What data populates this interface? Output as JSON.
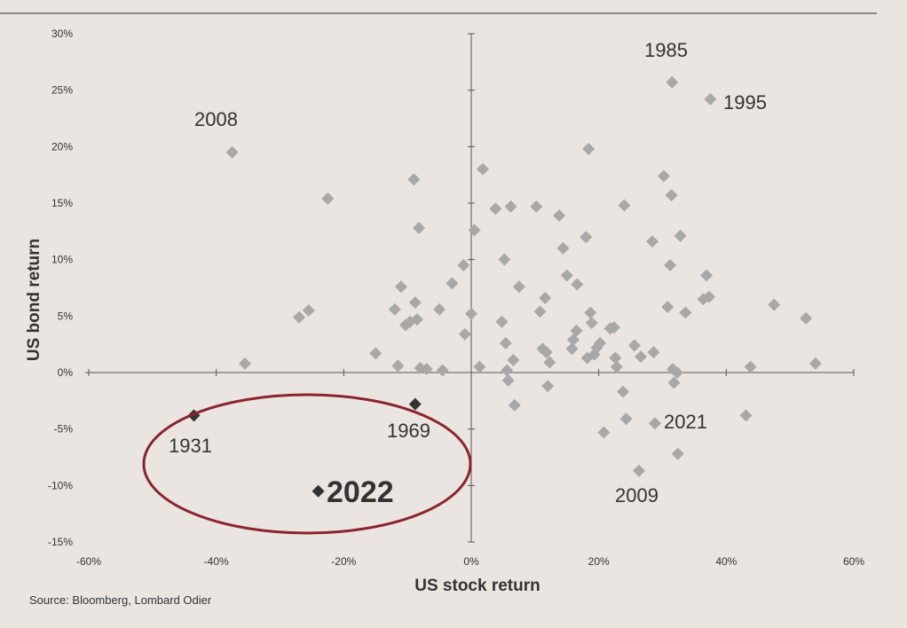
{
  "chart_data": {
    "type": "scatter",
    "xlabel": "US stock return",
    "ylabel": "US bond return",
    "xlim": [
      -60,
      60
    ],
    "ylim": [
      -15,
      30
    ],
    "x_ticks": [
      "-60%",
      "-40%",
      "-20%",
      "0%",
      "20%",
      "40%",
      "60%"
    ],
    "y_ticks": [
      "30%",
      "25%",
      "20%",
      "15%",
      "10%",
      "5%",
      "0%",
      "-5%",
      "-10%",
      "-15%"
    ],
    "points": [
      {
        "x": -37.5,
        "y": 19.5
      },
      {
        "x": -35.5,
        "y": 0.8
      },
      {
        "x": -27,
        "y": 4.9
      },
      {
        "x": -25.5,
        "y": 5.5
      },
      {
        "x": -22.5,
        "y": 15.4
      },
      {
        "x": -15,
        "y": 1.7
      },
      {
        "x": -12,
        "y": 5.6
      },
      {
        "x": -11.5,
        "y": 0.6
      },
      {
        "x": -11,
        "y": 7.6
      },
      {
        "x": -10.3,
        "y": 4.2
      },
      {
        "x": -9.6,
        "y": 4.5
      },
      {
        "x": -9,
        "y": 17.1
      },
      {
        "x": -8.8,
        "y": 6.2
      },
      {
        "x": -8.5,
        "y": 4.7
      },
      {
        "x": -8.2,
        "y": 12.8
      },
      {
        "x": -8,
        "y": 0.4
      },
      {
        "x": -7,
        "y": 0.3
      },
      {
        "x": -5,
        "y": 5.6
      },
      {
        "x": -4.5,
        "y": 0.2
      },
      {
        "x": -3,
        "y": 7.9
      },
      {
        "x": -1.2,
        "y": 9.5
      },
      {
        "x": -1,
        "y": 3.4
      },
      {
        "x": 0,
        "y": 5.2
      },
      {
        "x": 0.5,
        "y": 12.6
      },
      {
        "x": 1.3,
        "y": 0.5
      },
      {
        "x": 1.8,
        "y": 18
      },
      {
        "x": 3.8,
        "y": 14.5
      },
      {
        "x": 4.8,
        "y": 4.5
      },
      {
        "x": 5.2,
        "y": 10
      },
      {
        "x": 5.4,
        "y": 2.6
      },
      {
        "x": 5.6,
        "y": 0.2
      },
      {
        "x": 5.8,
        "y": -0.7
      },
      {
        "x": 6.2,
        "y": 14.7
      },
      {
        "x": 6.6,
        "y": 1.1
      },
      {
        "x": 6.8,
        "y": -2.9
      },
      {
        "x": 7.5,
        "y": 7.6
      },
      {
        "x": 10.2,
        "y": 14.7
      },
      {
        "x": 10.8,
        "y": 5.4
      },
      {
        "x": 11.2,
        "y": 2.1
      },
      {
        "x": 11.6,
        "y": 6.6
      },
      {
        "x": 11.8,
        "y": 1.8
      },
      {
        "x": 12,
        "y": -1.2
      },
      {
        "x": 12.3,
        "y": 0.9
      },
      {
        "x": 13.8,
        "y": 13.9
      },
      {
        "x": 14.4,
        "y": 11
      },
      {
        "x": 15,
        "y": 8.6
      },
      {
        "x": 15.8,
        "y": 2.1
      },
      {
        "x": 16,
        "y": 2.9
      },
      {
        "x": 16.5,
        "y": 3.7
      },
      {
        "x": 16.6,
        "y": 7.8
      },
      {
        "x": 18,
        "y": 12
      },
      {
        "x": 18.2,
        "y": 1.3
      },
      {
        "x": 18.4,
        "y": 19.8
      },
      {
        "x": 18.7,
        "y": 5.3
      },
      {
        "x": 18.9,
        "y": 4.4
      },
      {
        "x": 19.3,
        "y": 1.6
      },
      {
        "x": 19.7,
        "y": 2.2
      },
      {
        "x": 20.2,
        "y": 2.6
      },
      {
        "x": 20.8,
        "y": -5.3
      },
      {
        "x": 21.8,
        "y": 3.9
      },
      {
        "x": 22.4,
        "y": 4
      },
      {
        "x": 22.6,
        "y": 1.3
      },
      {
        "x": 22.8,
        "y": 0.5
      },
      {
        "x": 23.8,
        "y": -1.7
      },
      {
        "x": 24,
        "y": 14.8
      },
      {
        "x": 24.3,
        "y": -4.1
      },
      {
        "x": 25.6,
        "y": 2.4
      },
      {
        "x": 26.3,
        "y": -8.7
      },
      {
        "x": 26.6,
        "y": 1.4
      },
      {
        "x": 28.4,
        "y": 11.6
      },
      {
        "x": 28.6,
        "y": 1.8
      },
      {
        "x": 28.8,
        "y": -4.5
      },
      {
        "x": 30.2,
        "y": 17.4
      },
      {
        "x": 30.8,
        "y": 5.8
      },
      {
        "x": 31.2,
        "y": 9.5
      },
      {
        "x": 31.4,
        "y": 15.7
      },
      {
        "x": 31.5,
        "y": 25.7
      },
      {
        "x": 31.6,
        "y": 0.3
      },
      {
        "x": 31.8,
        "y": -0.9
      },
      {
        "x": 32.3,
        "y": 0
      },
      {
        "x": 32.4,
        "y": -7.2
      },
      {
        "x": 32.8,
        "y": 12.1
      },
      {
        "x": 33.6,
        "y": 5.3
      },
      {
        "x": 36.4,
        "y": 6.5
      },
      {
        "x": 36.9,
        "y": 8.6
      },
      {
        "x": 37.3,
        "y": 6.7
      },
      {
        "x": 37.5,
        "y": 24.2
      },
      {
        "x": 43.1,
        "y": -3.8
      },
      {
        "x": 43.8,
        "y": 0.5
      },
      {
        "x": 47.5,
        "y": 6
      },
      {
        "x": 52.5,
        "y": 4.8
      },
      {
        "x": 54,
        "y": 0.8
      }
    ],
    "highlighted_points": [
      {
        "label": "1931",
        "x": -43.5,
        "y": -3.8
      },
      {
        "label": "1969",
        "x": -8.8,
        "y": -2.8
      },
      {
        "label": "2022",
        "x": -24,
        "y": -10.5
      }
    ],
    "annotations": [
      "1985",
      "1995",
      "2008",
      "2021",
      "2009"
    ]
  },
  "labels": {
    "y1985": "1985",
    "y1995": "1995",
    "y2008": "2008",
    "y2021": "2021",
    "y2009": "2009",
    "y1931": "1931",
    "y1969": "1969",
    "y2022": "2022"
  },
  "source": "Source: Bloomberg, Lombard Odier",
  "colors": {
    "background": "#ebe5e1",
    "point": "#a8a8a8",
    "highlight": "#333333",
    "ellipse": "#8b2330",
    "axis": "#555555"
  }
}
